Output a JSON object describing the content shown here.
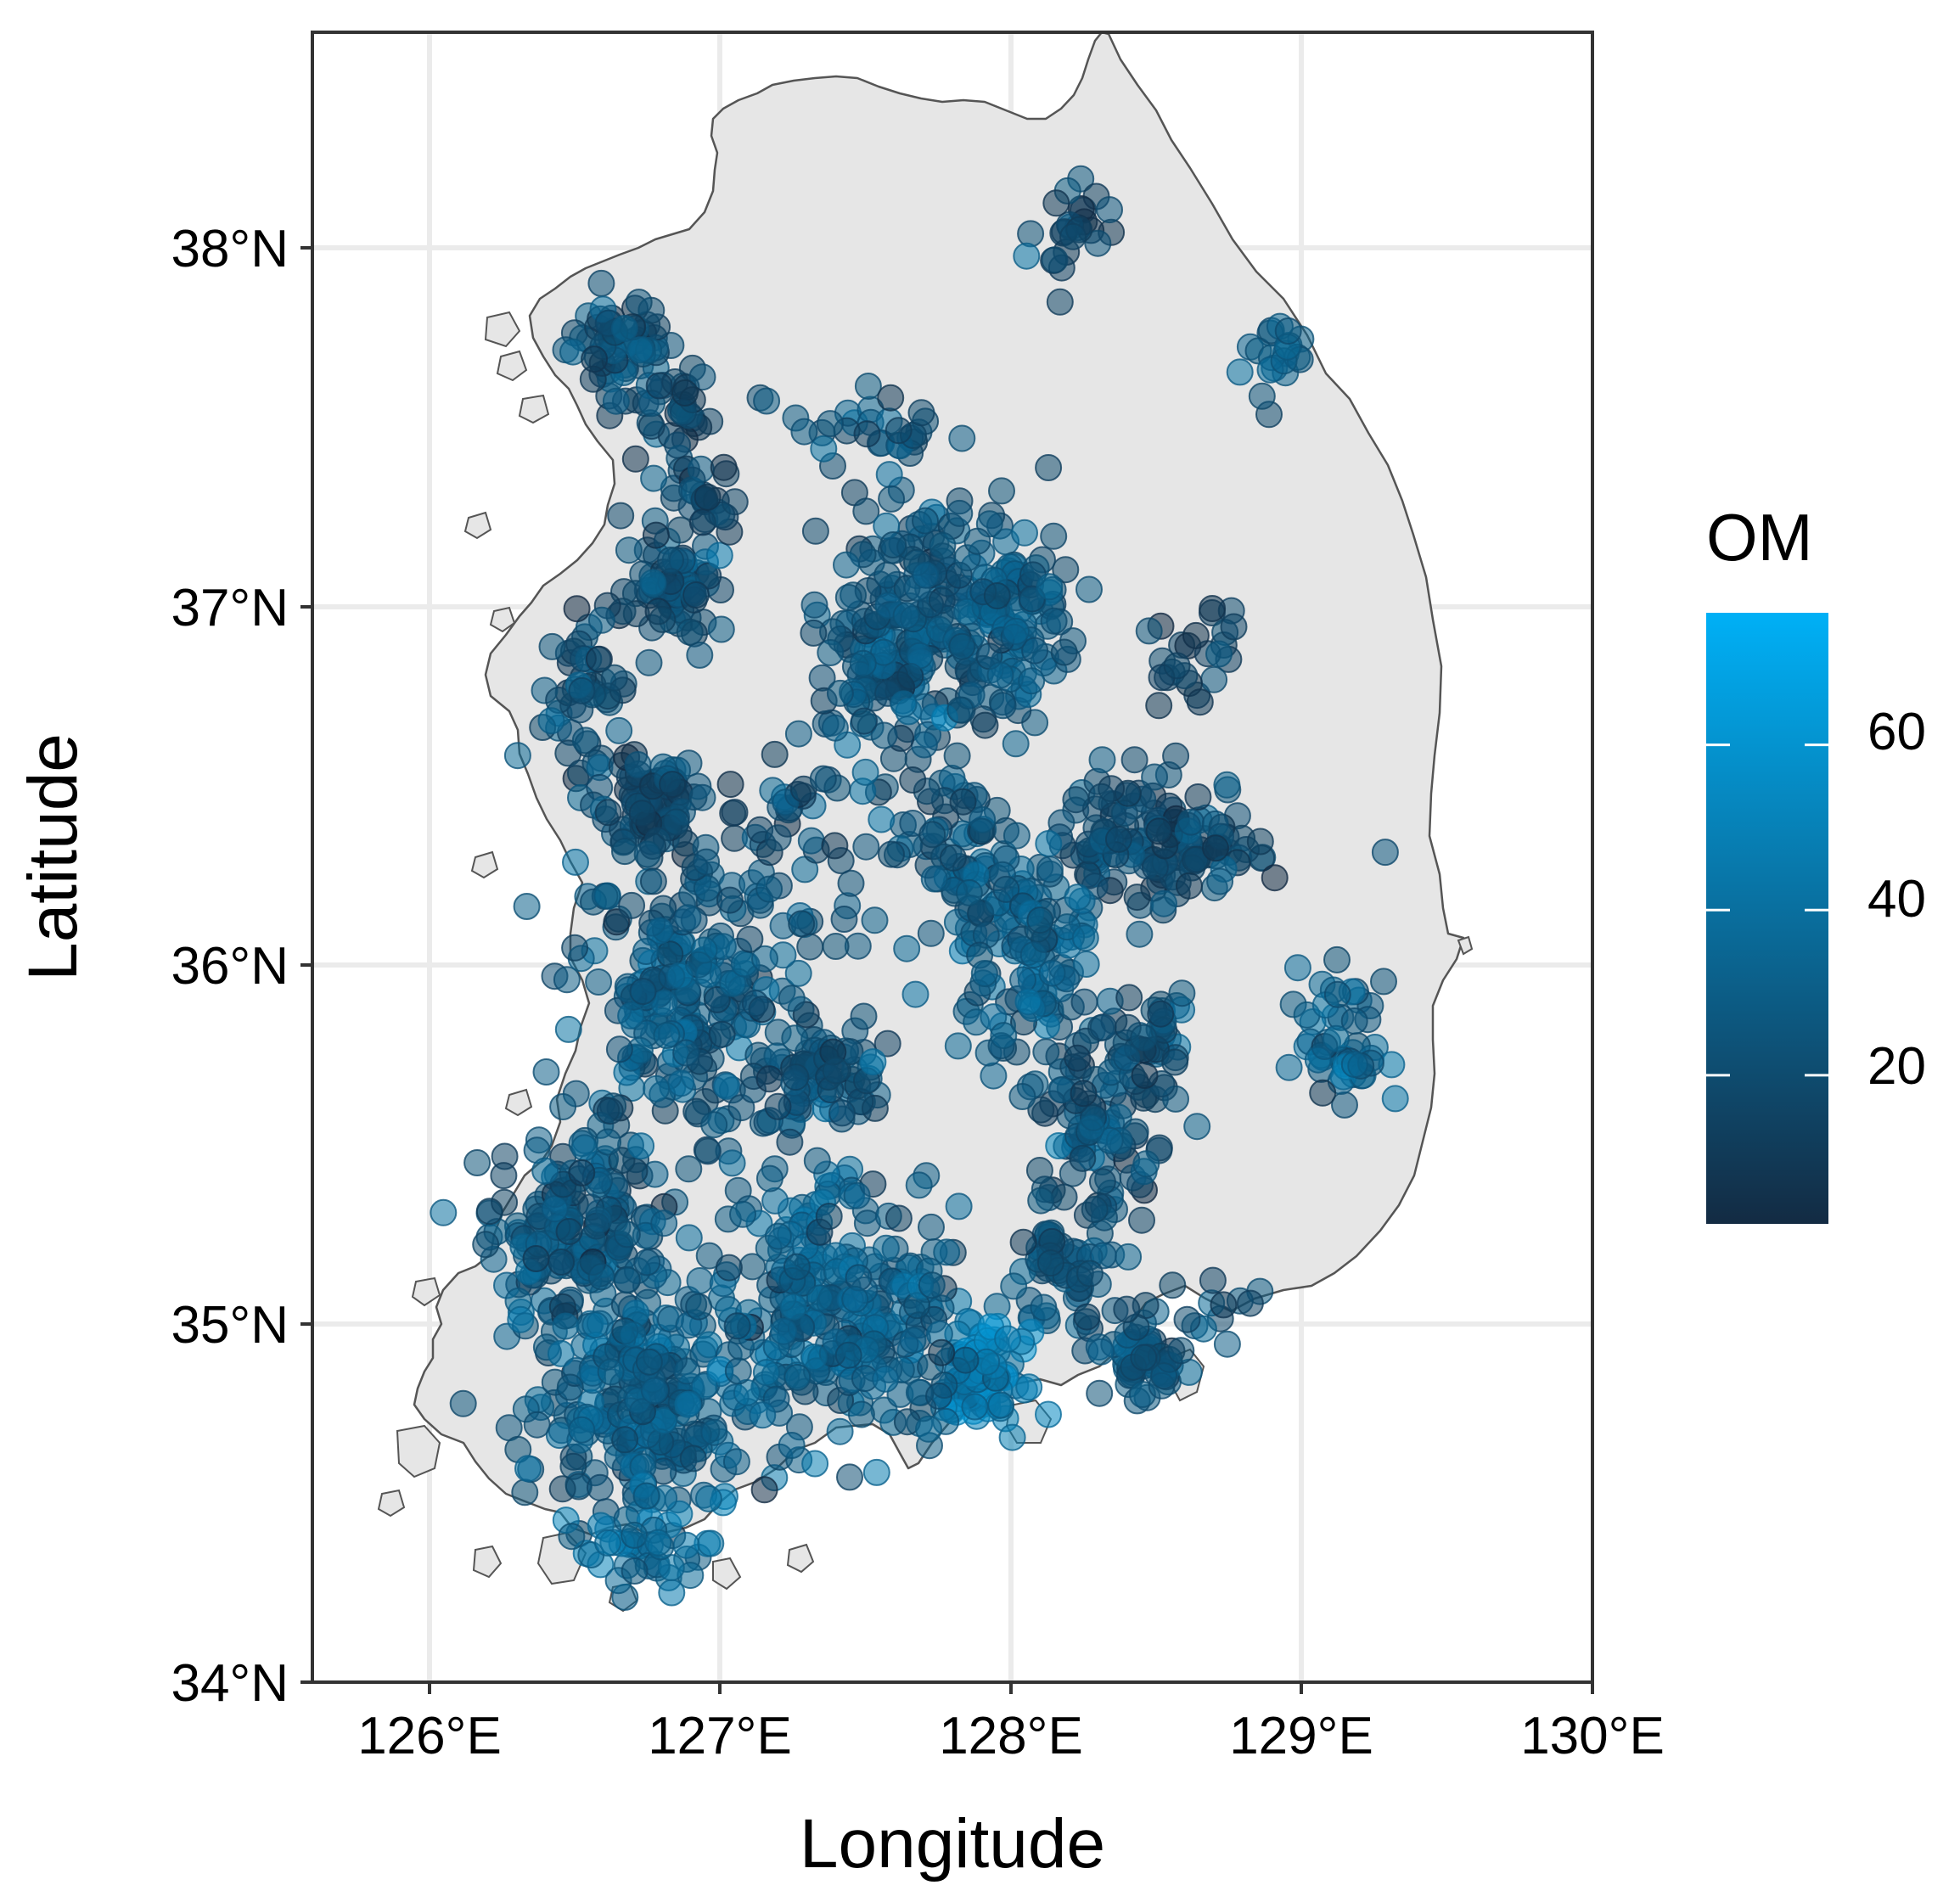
{
  "chart_data": {
    "type": "scatter",
    "subtype": "geographic point map",
    "title": "",
    "xlabel": "Longitude",
    "ylabel": "Latitude",
    "xlim": [
      125.6,
      130.0
    ],
    "ylim": [
      34.0,
      38.6
    ],
    "x_ticks": [
      126,
      127,
      128,
      129,
      130
    ],
    "x_tick_labels": [
      "126°E",
      "127°E",
      "128°E",
      "129°E",
      "130°E"
    ],
    "y_ticks": [
      34,
      35,
      36,
      37,
      38
    ],
    "y_tick_labels": [
      "34°N",
      "35°N",
      "36°N",
      "37°N",
      "38°N"
    ],
    "grid": true,
    "basemap": "South Korea outline",
    "color_variable": "OM",
    "legend": {
      "title": "OM",
      "placement": "right",
      "type": "continuous colorbar",
      "range": [
        2,
        76
      ],
      "ticks": [
        20,
        40,
        60
      ],
      "tick_labels": [
        "20",
        "40",
        "60"
      ],
      "color_low": "#132b43",
      "color_high": "#00b0f6"
    },
    "point_opacity": 0.55,
    "point_clusters": [
      {
        "lon": 126.65,
        "lat": 37.72,
        "spread_lon": 0.15,
        "spread_lat": 0.12,
        "n": 60,
        "om_mean": 22
      },
      {
        "lon": 126.85,
        "lat": 37.55,
        "spread_lon": 0.1,
        "spread_lat": 0.1,
        "n": 30,
        "om_mean": 20
      },
      {
        "lon": 126.85,
        "lat": 37.05,
        "spread_lon": 0.15,
        "spread_lat": 0.15,
        "n": 70,
        "om_mean": 22
      },
      {
        "lon": 126.55,
        "lat": 36.75,
        "spread_lon": 0.12,
        "spread_lat": 0.18,
        "n": 50,
        "om_mean": 22
      },
      {
        "lon": 126.75,
        "lat": 36.45,
        "spread_lon": 0.15,
        "spread_lat": 0.12,
        "n": 80,
        "om_mean": 18
      },
      {
        "lon": 126.85,
        "lat": 35.95,
        "spread_lon": 0.3,
        "spread_lat": 0.35,
        "n": 220,
        "om_mean": 28
      },
      {
        "lon": 126.5,
        "lat": 35.25,
        "spread_lon": 0.25,
        "spread_lat": 0.25,
        "n": 180,
        "om_mean": 26
      },
      {
        "lon": 126.75,
        "lat": 34.75,
        "spread_lon": 0.28,
        "spread_lat": 0.28,
        "n": 230,
        "om_mean": 30
      },
      {
        "lon": 127.35,
        "lat": 35.05,
        "spread_lon": 0.3,
        "spread_lat": 0.3,
        "n": 240,
        "om_mean": 32
      },
      {
        "lon": 127.35,
        "lat": 35.7,
        "spread_lon": 0.18,
        "spread_lat": 0.15,
        "n": 80,
        "om_mean": 25
      },
      {
        "lon": 127.65,
        "lat": 36.95,
        "spread_lon": 0.22,
        "spread_lat": 0.28,
        "n": 160,
        "om_mean": 25
      },
      {
        "lon": 128.0,
        "lat": 36.95,
        "spread_lon": 0.18,
        "spread_lat": 0.22,
        "n": 120,
        "om_mean": 28
      },
      {
        "lon": 127.8,
        "lat": 36.35,
        "spread_lon": 0.15,
        "spread_lat": 0.25,
        "n": 60,
        "om_mean": 25
      },
      {
        "lon": 128.5,
        "lat": 36.35,
        "spread_lon": 0.28,
        "spread_lat": 0.15,
        "n": 140,
        "om_mean": 22
      },
      {
        "lon": 128.05,
        "lat": 36.05,
        "spread_lon": 0.22,
        "spread_lat": 0.25,
        "n": 120,
        "om_mean": 30
      },
      {
        "lon": 128.3,
        "lat": 35.55,
        "spread_lon": 0.22,
        "spread_lat": 0.22,
        "n": 100,
        "om_mean": 24
      },
      {
        "lon": 128.2,
        "lat": 35.15,
        "spread_lon": 0.15,
        "spread_lat": 0.15,
        "n": 60,
        "om_mean": 25
      },
      {
        "lon": 127.9,
        "lat": 34.85,
        "spread_lon": 0.12,
        "spread_lat": 0.1,
        "n": 90,
        "om_mean": 50
      },
      {
        "lon": 128.45,
        "lat": 34.9,
        "spread_lon": 0.1,
        "spread_lat": 0.08,
        "n": 60,
        "om_mean": 24
      },
      {
        "lon": 128.5,
        "lat": 35.8,
        "spread_lon": 0.1,
        "spread_lat": 0.12,
        "n": 30,
        "om_mean": 22
      },
      {
        "lon": 129.15,
        "lat": 35.8,
        "spread_lon": 0.12,
        "spread_lat": 0.2,
        "n": 50,
        "om_mean": 35
      },
      {
        "lon": 128.9,
        "lat": 37.7,
        "spread_lon": 0.12,
        "spread_lat": 0.1,
        "n": 20,
        "om_mean": 30
      },
      {
        "lon": 128.2,
        "lat": 38.05,
        "spread_lon": 0.12,
        "spread_lat": 0.12,
        "n": 25,
        "om_mean": 20
      },
      {
        "lon": 127.5,
        "lat": 37.5,
        "spread_lon": 0.25,
        "spread_lat": 0.1,
        "n": 30,
        "om_mean": 25
      },
      {
        "lon": 126.9,
        "lat": 37.3,
        "spread_lon": 0.15,
        "spread_lat": 0.08,
        "n": 25,
        "om_mean": 18
      },
      {
        "lon": 128.65,
        "lat": 36.85,
        "spread_lon": 0.12,
        "spread_lat": 0.12,
        "n": 25,
        "om_mean": 15
      },
      {
        "lon": 127.7,
        "lat": 35.0,
        "spread_lon": 0.1,
        "spread_lat": 0.25,
        "n": 40,
        "om_mean": 28
      },
      {
        "lon": 127.3,
        "lat": 36.3,
        "spread_lon": 0.25,
        "spread_lat": 0.3,
        "n": 50,
        "om_mean": 25
      },
      {
        "lon": 127.5,
        "lat": 36.8,
        "spread_lon": 0.18,
        "spread_lat": 0.2,
        "n": 40,
        "om_mean": 30
      },
      {
        "lon": 128.65,
        "lat": 35.05,
        "spread_lon": 0.25,
        "spread_lat": 0.08,
        "n": 15,
        "om_mean": 24
      },
      {
        "lon": 126.75,
        "lat": 34.4,
        "spread_lon": 0.2,
        "spread_lat": 0.1,
        "n": 40,
        "om_mean": 40
      }
    ]
  }
}
